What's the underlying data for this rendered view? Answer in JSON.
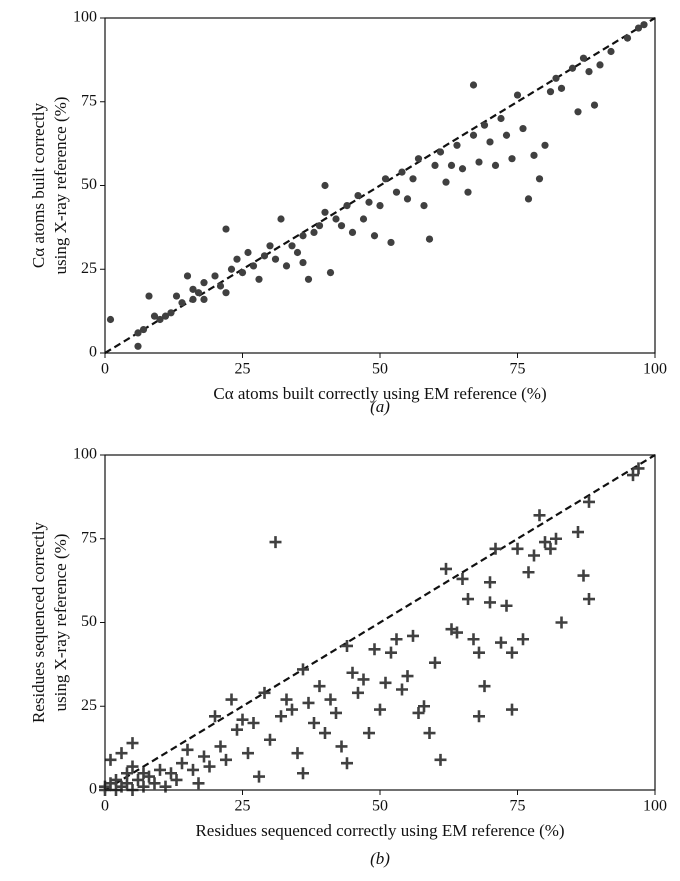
{
  "chart_data": [
    {
      "type": "scatter",
      "panel_label": "(a)",
      "xlabel": "Cα atoms built correctly using EM reference (%)",
      "ylabel": [
        "Cα atoms built correctly",
        "using X-ray reference (%)"
      ],
      "xlim": [
        0,
        100
      ],
      "ylim": [
        0,
        100
      ],
      "xticks": [
        0,
        25,
        50,
        75,
        100
      ],
      "yticks": [
        0,
        25,
        50,
        75,
        100
      ],
      "marker": "o",
      "color": "#404040",
      "identity_line": true,
      "x": [
        1,
        6,
        6,
        7,
        8,
        9,
        10,
        11,
        12,
        13,
        14,
        15,
        16,
        16,
        17,
        18,
        18,
        20,
        21,
        22,
        22,
        23,
        24,
        25,
        26,
        27,
        28,
        29,
        30,
        31,
        32,
        33,
        34,
        35,
        36,
        36,
        37,
        38,
        39,
        40,
        40,
        41,
        42,
        43,
        44,
        45,
        46,
        47,
        48,
        49,
        50,
        51,
        52,
        53,
        54,
        55,
        56,
        57,
        58,
        59,
        60,
        61,
        62,
        63,
        64,
        65,
        66,
        67,
        67,
        68,
        69,
        70,
        71,
        72,
        73,
        74,
        75,
        76,
        77,
        78,
        79,
        80,
        81,
        82,
        83,
        85,
        86,
        87,
        88,
        89,
        90,
        92,
        95,
        97,
        98
      ],
      "values": [
        10,
        2,
        6,
        7,
        17,
        11,
        10,
        11,
        12,
        17,
        15,
        23,
        16,
        19,
        18,
        21,
        16,
        23,
        20,
        37,
        18,
        25,
        28,
        24,
        30,
        26,
        22,
        29,
        32,
        28,
        40,
        26,
        32,
        30,
        35,
        27,
        22,
        36,
        38,
        50,
        42,
        24,
        40,
        38,
        44,
        36,
        47,
        40,
        45,
        35,
        44,
        52,
        33,
        48,
        54,
        46,
        52,
        58,
        44,
        34,
        56,
        60,
        51,
        56,
        62,
        55,
        48,
        80,
        65,
        57,
        68,
        63,
        56,
        70,
        65,
        58,
        77,
        67,
        46,
        59,
        52,
        62,
        78,
        82,
        79,
        85,
        72,
        88,
        84,
        74,
        86,
        90,
        94,
        97,
        98
      ]
    },
    {
      "type": "scatter",
      "panel_label": "(b)",
      "xlabel": "Residues sequenced correctly using EM reference (%)",
      "ylabel": [
        "Residues sequenced correctly",
        "using X-ray reference (%)"
      ],
      "xlim": [
        0,
        100
      ],
      "ylim": [
        0,
        100
      ],
      "xticks": [
        0,
        25,
        50,
        75,
        100
      ],
      "yticks": [
        0,
        25,
        50,
        75,
        100
      ],
      "marker": "+",
      "color": "#404040",
      "identity_line": true,
      "x": [
        0,
        0,
        1,
        1,
        2,
        2,
        3,
        3,
        4,
        4,
        5,
        5,
        5,
        6,
        7,
        7,
        8,
        9,
        10,
        11,
        12,
        13,
        14,
        15,
        16,
        17,
        18,
        19,
        20,
        21,
        22,
        23,
        24,
        25,
        26,
        27,
        28,
        29,
        30,
        31,
        32,
        33,
        34,
        35,
        36,
        36,
        37,
        38,
        39,
        40,
        41,
        42,
        43,
        44,
        44,
        45,
        46,
        47,
        48,
        49,
        50,
        51,
        52,
        53,
        54,
        55,
        56,
        57,
        58,
        59,
        60,
        61,
        62,
        63,
        64,
        65,
        66,
        67,
        68,
        68,
        69,
        70,
        70,
        71,
        72,
        73,
        74,
        74,
        75,
        76,
        77,
        78,
        79,
        80,
        81,
        82,
        83,
        86,
        87,
        88,
        88,
        96,
        97
      ],
      "values": [
        0,
        1,
        2,
        9,
        0,
        3,
        1,
        11,
        2,
        5,
        0,
        7,
        14,
        3,
        1,
        5,
        4,
        2,
        6,
        1,
        5,
        3,
        8,
        12,
        6,
        2,
        10,
        7,
        22,
        13,
        9,
        27,
        18,
        21,
        11,
        20,
        4,
        29,
        15,
        74,
        22,
        27,
        24,
        11,
        36,
        5,
        26,
        20,
        31,
        17,
        27,
        23,
        13,
        43,
        8,
        35,
        29,
        33,
        17,
        42,
        24,
        32,
        41,
        45,
        30,
        34,
        46,
        23,
        25,
        17,
        38,
        9,
        66,
        48,
        47,
        63,
        57,
        45,
        41,
        22,
        31,
        56,
        62,
        72,
        44,
        55,
        41,
        24,
        72,
        45,
        65,
        70,
        82,
        74,
        72,
        75,
        50,
        77,
        64,
        57,
        86,
        94,
        96
      ]
    }
  ]
}
